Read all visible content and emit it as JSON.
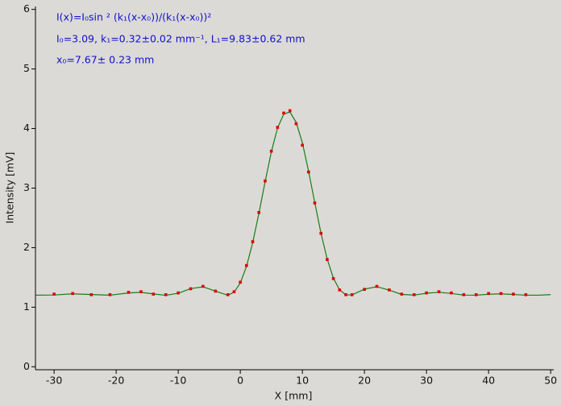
{
  "chart_data": {
    "type": "scatter",
    "xlabel": "X [mm]",
    "ylabel": "Intensity [mV]",
    "annotations": [
      "I(x)=I₀sin ² (k₁(x-x₀))/(k₁(x-x₀))²",
      "I₀=3.09,  k₁=0.32±0.02 mm⁻¹,   L₁=9.83±0.62 mm",
      "x₀=7.67±   0.23 mm"
    ],
    "xlim": [
      -33,
      50.5
    ],
    "ylim": [
      -0.05,
      6.05
    ],
    "xticks": [
      -30,
      -20,
      -10,
      0,
      10,
      20,
      30,
      40,
      50
    ],
    "yticks": [
      0,
      1,
      2,
      3,
      4,
      5,
      6
    ],
    "series": [
      {
        "type": "line",
        "color": "#1a7a1a",
        "x": [
          -33,
          -30,
          -27,
          -24,
          -21,
          -18,
          -16,
          -14,
          -12,
          -10,
          -8,
          -6,
          -4,
          -2,
          -1,
          0,
          1,
          2,
          3,
          4,
          5,
          6,
          7,
          8,
          9,
          10,
          11,
          12,
          13,
          14,
          15,
          16,
          17,
          18,
          20,
          22,
          24,
          26,
          28,
          30,
          32,
          34,
          36,
          38,
          40,
          42,
          44,
          46,
          48,
          50
        ],
        "values": [
          1.203,
          1.205,
          1.225,
          1.213,
          1.202,
          1.24,
          1.25,
          1.223,
          1.2,
          1.234,
          1.312,
          1.343,
          1.269,
          1.201,
          1.253,
          1.406,
          1.685,
          2.086,
          2.578,
          3.106,
          3.608,
          4.009,
          4.243,
          4.278,
          4.104,
          3.762,
          3.283,
          2.754,
          2.242,
          1.808,
          1.487,
          1.291,
          1.208,
          1.207,
          1.303,
          1.345,
          1.286,
          1.215,
          1.204,
          1.235,
          1.251,
          1.231,
          1.204,
          1.202,
          1.218,
          1.225,
          1.214,
          1.202,
          1.202,
          1.211
        ]
      },
      {
        "type": "scatter",
        "color": "#e00000",
        "x": [
          -30,
          -27,
          -24,
          -21,
          -18,
          -16,
          -14,
          -12,
          -10,
          -8,
          -6,
          -4,
          -2,
          -1,
          0,
          1,
          2,
          3,
          4,
          5,
          6,
          7,
          8,
          9,
          10,
          11,
          12,
          13,
          14,
          15,
          16,
          17,
          18,
          20,
          22,
          24,
          26,
          28,
          30,
          32,
          34,
          36,
          38,
          40,
          42,
          44,
          46
        ],
        "values": [
          1.22,
          1.23,
          1.21,
          1.21,
          1.25,
          1.26,
          1.22,
          1.21,
          1.24,
          1.31,
          1.35,
          1.27,
          1.21,
          1.26,
          1.42,
          1.7,
          2.1,
          2.59,
          3.12,
          3.62,
          4.02,
          4.26,
          4.3,
          4.08,
          3.72,
          3.27,
          2.75,
          2.24,
          1.8,
          1.48,
          1.29,
          1.21,
          1.21,
          1.3,
          1.35,
          1.29,
          1.22,
          1.21,
          1.24,
          1.26,
          1.24,
          1.21,
          1.21,
          1.23,
          1.23,
          1.22,
          1.21
        ]
      }
    ]
  }
}
